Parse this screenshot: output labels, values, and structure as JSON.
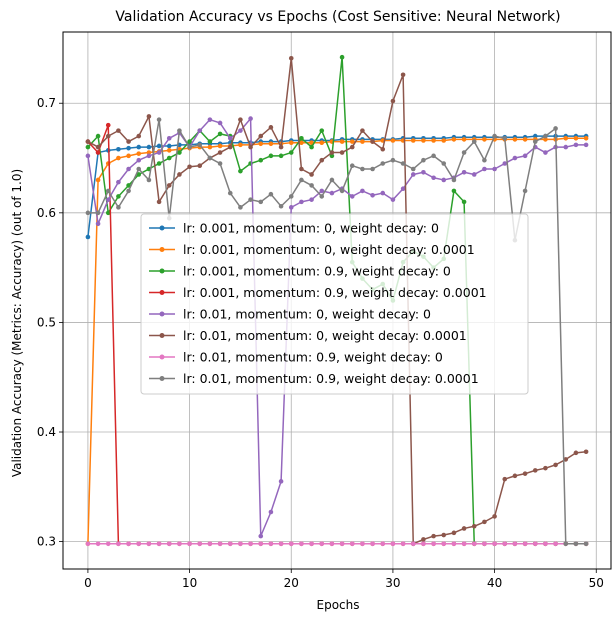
{
  "chart_data": {
    "type": "line",
    "title": "Validation Accuracy vs Epochs (Cost Sensitive: Neural Network)",
    "xlabel": "Epochs",
    "ylabel": "Validation Accuracy (Metrics: Accuracy) (out of 1.0)",
    "xlim": [
      -2.45,
      51.45
    ],
    "ylim": [
      0.275,
      0.765
    ],
    "xticks": [
      0,
      10,
      20,
      30,
      40,
      50
    ],
    "yticks": [
      0.3,
      0.4,
      0.5,
      0.6,
      0.7
    ],
    "grid": true,
    "legend_position": "center",
    "series": [
      {
        "name": "lr: 0.001, momentum: 0, weight decay: 0",
        "color": "#1f77b4",
        "x": [
          0,
          1,
          2,
          3,
          4,
          5,
          6,
          7,
          8,
          9,
          10,
          11,
          12,
          13,
          14,
          15,
          16,
          17,
          18,
          19,
          20,
          21,
          22,
          23,
          24,
          25,
          26,
          27,
          28,
          29,
          30,
          31,
          32,
          33,
          34,
          35,
          36,
          37,
          38,
          39,
          40,
          41,
          42,
          43,
          44,
          45,
          46,
          47,
          48,
          49
        ],
        "values": [
          0.578,
          0.655,
          0.657,
          0.658,
          0.659,
          0.66,
          0.66,
          0.661,
          0.661,
          0.662,
          0.662,
          0.663,
          0.663,
          0.663,
          0.664,
          0.664,
          0.664,
          0.665,
          0.665,
          0.665,
          0.666,
          0.666,
          0.666,
          0.666,
          0.666,
          0.667,
          0.667,
          0.667,
          0.667,
          0.667,
          0.667,
          0.668,
          0.668,
          0.668,
          0.668,
          0.668,
          0.669,
          0.669,
          0.669,
          0.669,
          0.669,
          0.669,
          0.669,
          0.669,
          0.67,
          0.67,
          0.67,
          0.67,
          0.67,
          0.67
        ]
      },
      {
        "name": "lr: 0.001, momentum: 0, weight decay: 0.0001",
        "color": "#ff7f0e",
        "x": [
          0,
          1,
          2,
          3,
          4,
          5,
          6,
          7,
          8,
          9,
          10,
          11,
          12,
          13,
          14,
          15,
          16,
          17,
          18,
          19,
          20,
          21,
          22,
          23,
          24,
          25,
          26,
          27,
          28,
          29,
          30,
          31,
          32,
          33,
          34,
          35,
          36,
          37,
          38,
          39,
          40,
          41,
          42,
          43,
          44,
          45,
          46,
          47,
          48,
          49
        ],
        "values": [
          0.298,
          0.63,
          0.645,
          0.65,
          0.652,
          0.654,
          0.655,
          0.656,
          0.657,
          0.658,
          0.659,
          0.66,
          0.66,
          0.661,
          0.661,
          0.662,
          0.662,
          0.663,
          0.663,
          0.663,
          0.664,
          0.664,
          0.664,
          0.664,
          0.665,
          0.665,
          0.665,
          0.665,
          0.665,
          0.666,
          0.666,
          0.666,
          0.666,
          0.666,
          0.666,
          0.666,
          0.667,
          0.667,
          0.667,
          0.667,
          0.667,
          0.667,
          0.667,
          0.667,
          0.667,
          0.667,
          0.667,
          0.668,
          0.668,
          0.668
        ]
      },
      {
        "name": "lr: 0.001, momentum: 0.9, weight decay: 0",
        "color": "#2ca02c",
        "x": [
          0,
          1,
          2,
          3,
          4,
          5,
          6,
          7,
          8,
          9,
          10,
          11,
          12,
          13,
          14,
          15,
          16,
          17,
          18,
          19,
          20,
          21,
          22,
          23,
          24,
          25,
          26,
          27,
          28,
          29,
          30,
          31,
          32,
          33,
          34,
          35,
          36,
          37,
          38,
          39,
          40,
          41,
          42,
          43,
          44,
          45,
          46,
          47,
          48,
          49
        ],
        "values": [
          0.66,
          0.67,
          0.6,
          0.615,
          0.625,
          0.635,
          0.64,
          0.645,
          0.65,
          0.655,
          0.665,
          0.675,
          0.665,
          0.672,
          0.67,
          0.638,
          0.645,
          0.648,
          0.652,
          0.652,
          0.655,
          0.668,
          0.66,
          0.675,
          0.652,
          0.742,
          0.555,
          0.54,
          0.53,
          0.535,
          0.52,
          0.555,
          0.565,
          0.56,
          0.55,
          0.558,
          0.62,
          0.61,
          0.298,
          0.298,
          0.298,
          0.298,
          0.298,
          0.298,
          0.298,
          0.298,
          0.298,
          0.298,
          0.298,
          0.298
        ]
      },
      {
        "name": "lr: 0.001, momentum: 0.9, weight decay: 0.0001",
        "color": "#d62728",
        "x": [
          0,
          1,
          2,
          3,
          4,
          5,
          6,
          7,
          8,
          9,
          10,
          11,
          12,
          13,
          14,
          15,
          16,
          17,
          18,
          19,
          20,
          21,
          22,
          23,
          24,
          25,
          26,
          27,
          28,
          29,
          30,
          31,
          32,
          33,
          34,
          35,
          36,
          37,
          38,
          39,
          40,
          41,
          42,
          43,
          44,
          45,
          46,
          47,
          48,
          49
        ],
        "values": [
          0.665,
          0.655,
          0.68,
          0.298,
          0.298,
          0.298,
          0.298,
          0.298,
          0.298,
          0.298,
          0.298,
          0.298,
          0.298,
          0.298,
          0.298,
          0.298,
          0.298,
          0.298,
          0.298,
          0.298,
          0.298,
          0.298,
          0.298,
          0.298,
          0.298,
          0.298,
          0.298,
          0.298,
          0.298,
          0.298,
          0.298,
          0.298,
          0.298,
          0.298,
          0.298,
          0.298,
          0.298,
          0.298,
          0.298,
          0.298,
          0.298,
          0.298,
          0.298,
          0.298,
          0.298,
          0.298,
          0.298,
          0.298,
          0.298,
          0.298
        ]
      },
      {
        "name": "lr: 0.01, momentum: 0, weight decay: 0",
        "color": "#9467bd",
        "x": [
          0,
          1,
          2,
          3,
          4,
          5,
          6,
          7,
          8,
          9,
          10,
          11,
          12,
          13,
          14,
          15,
          16,
          17,
          18,
          19,
          20,
          21,
          22,
          23,
          24,
          25,
          26,
          27,
          28,
          29,
          30,
          31,
          32,
          33,
          34,
          35,
          36,
          37,
          38,
          39,
          40,
          41,
          42,
          43,
          44,
          45,
          46,
          47,
          48,
          49
        ],
        "values": [
          0.652,
          0.59,
          0.612,
          0.628,
          0.64,
          0.648,
          0.652,
          0.655,
          0.668,
          0.673,
          0.66,
          0.675,
          0.685,
          0.682,
          0.668,
          0.675,
          0.686,
          0.305,
          0.327,
          0.355,
          0.605,
          0.61,
          0.612,
          0.62,
          0.618,
          0.622,
          0.615,
          0.62,
          0.616,
          0.618,
          0.612,
          0.622,
          0.635,
          0.637,
          0.632,
          0.63,
          0.632,
          0.637,
          0.635,
          0.64,
          0.64,
          0.645,
          0.65,
          0.652,
          0.66,
          0.655,
          0.66,
          0.66,
          0.662,
          0.662
        ]
      },
      {
        "name": "lr: 0.01, momentum: 0, weight decay: 0.0001",
        "color": "#8c564b",
        "x": [
          0,
          1,
          2,
          3,
          4,
          5,
          6,
          7,
          8,
          9,
          10,
          11,
          12,
          13,
          14,
          15,
          16,
          17,
          18,
          19,
          20,
          21,
          22,
          23,
          24,
          25,
          26,
          27,
          28,
          29,
          30,
          31,
          32,
          33,
          34,
          35,
          36,
          37,
          38,
          39,
          40,
          41,
          42,
          43,
          44,
          45,
          46,
          47,
          48,
          49
        ],
        "values": [
          0.665,
          0.66,
          0.67,
          0.675,
          0.665,
          0.67,
          0.688,
          0.61,
          0.625,
          0.635,
          0.642,
          0.643,
          0.65,
          0.655,
          0.66,
          0.685,
          0.66,
          0.67,
          0.678,
          0.66,
          0.741,
          0.64,
          0.635,
          0.648,
          0.655,
          0.655,
          0.66,
          0.675,
          0.665,
          0.658,
          0.702,
          0.726,
          0.298,
          0.302,
          0.305,
          0.306,
          0.308,
          0.312,
          0.314,
          0.318,
          0.323,
          0.357,
          0.36,
          0.362,
          0.365,
          0.367,
          0.37,
          0.375,
          0.381,
          0.382
        ]
      },
      {
        "name": "lr: 0.01, momentum: 0.9, weight decay: 0",
        "color": "#e377c2",
        "x": [
          0,
          1,
          2,
          3,
          4,
          5,
          6,
          7,
          8,
          9,
          10,
          11,
          12,
          13,
          14,
          15,
          16,
          17,
          18,
          19,
          20,
          21,
          22,
          23,
          24,
          25,
          26,
          27,
          28,
          29,
          30,
          31,
          32,
          33,
          34,
          35,
          36,
          37,
          38,
          39,
          40,
          41,
          42,
          43,
          44,
          45,
          46,
          47,
          48,
          49
        ],
        "values": [
          0.298,
          0.298,
          0.298,
          0.298,
          0.298,
          0.298,
          0.298,
          0.298,
          0.298,
          0.298,
          0.298,
          0.298,
          0.298,
          0.298,
          0.298,
          0.298,
          0.298,
          0.298,
          0.298,
          0.298,
          0.298,
          0.298,
          0.298,
          0.298,
          0.298,
          0.298,
          0.298,
          0.298,
          0.298,
          0.298,
          0.298,
          0.298,
          0.298,
          0.298,
          0.298,
          0.298,
          0.298,
          0.298,
          0.298,
          0.298,
          0.298,
          0.298,
          0.298,
          0.298,
          0.298,
          0.298,
          0.298,
          0.298,
          0.298,
          0.298
        ]
      },
      {
        "name": "lr: 0.01, momentum: 0.9, weight decay: 0.0001",
        "color": "#7f7f7f",
        "x": [
          0,
          1,
          2,
          3,
          4,
          5,
          6,
          7,
          8,
          9,
          10,
          11,
          12,
          13,
          14,
          15,
          16,
          17,
          18,
          19,
          20,
          21,
          22,
          23,
          24,
          25,
          26,
          27,
          28,
          29,
          30,
          31,
          32,
          33,
          34,
          35,
          36,
          37,
          38,
          39,
          40,
          41,
          42,
          43,
          44,
          45,
          46,
          47,
          48,
          49
        ],
        "values": [
          0.6,
          0.6,
          0.62,
          0.605,
          0.62,
          0.64,
          0.63,
          0.685,
          0.595,
          0.675,
          0.66,
          0.662,
          0.65,
          0.645,
          0.618,
          0.605,
          0.612,
          0.61,
          0.617,
          0.606,
          0.615,
          0.63,
          0.625,
          0.615,
          0.63,
          0.62,
          0.643,
          0.64,
          0.64,
          0.645,
          0.648,
          0.645,
          0.64,
          0.648,
          0.652,
          0.645,
          0.63,
          0.655,
          0.665,
          0.648,
          0.67,
          0.668,
          0.575,
          0.62,
          0.665,
          0.67,
          0.677,
          0.298,
          0.298,
          0.298
        ]
      }
    ]
  }
}
